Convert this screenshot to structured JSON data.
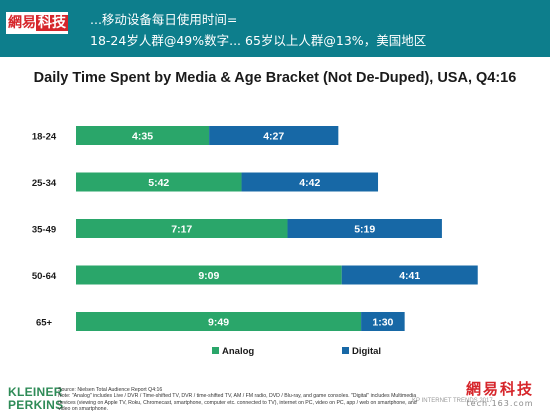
{
  "header": {
    "logo_part1": "網易",
    "logo_part2": "科技",
    "line1": "...移动设备每日使用时间=",
    "line2": "18-24岁人群@49%数字... 65岁以上人群@13%，美国地区"
  },
  "chart_data": {
    "type": "bar",
    "orientation": "horizontal",
    "stacked": true,
    "title": "Daily Time Spent by Media & Age Bracket (Not De-Duped), USA, Q4:16",
    "categories": [
      "18-24",
      "25-34",
      "35-49",
      "50-64",
      "65+"
    ],
    "series": [
      {
        "name": "Analog",
        "color": "#2aa66a",
        "values_minutes": [
          275,
          342,
          437,
          549,
          589
        ],
        "labels": [
          "4:35",
          "5:42",
          "7:17",
          "9:09",
          "9:49"
        ]
      },
      {
        "name": "Digital",
        "color": "#1768a6",
        "values_minutes": [
          267,
          282,
          319,
          281,
          90
        ],
        "labels": [
          "4:27",
          "4:42",
          "5:19",
          "4:41",
          "1:30"
        ]
      }
    ],
    "xlim_minutes": [
      0,
      876
    ],
    "axis_visible": false,
    "grid": false,
    "legend_position": "bottom-center"
  },
  "footer": {
    "logo_line1": "KLEINER",
    "logo_line2": "PERKINS",
    "source_line1": "Source: Nielsen Total Audience Report Q4:16",
    "source_line2": "Note: \"Analog\" includes Live / DVR / Time-shifted TV, DVR / time-shifted TV, AM / FM radio, DVD / Blu-ray, and game consoles. \"Digital\" includes Multimedia devices (viewing on Apple TV, Roku, Chromecast, smartphone, computer etc. connected to TV), internet on PC, video on PC, app / web on smartphone, and video on smartphone.",
    "credit": "KP INTERNET TRENDS 2017",
    "watermark_cn": "網易科技",
    "watermark_url": "tech.163.com"
  }
}
